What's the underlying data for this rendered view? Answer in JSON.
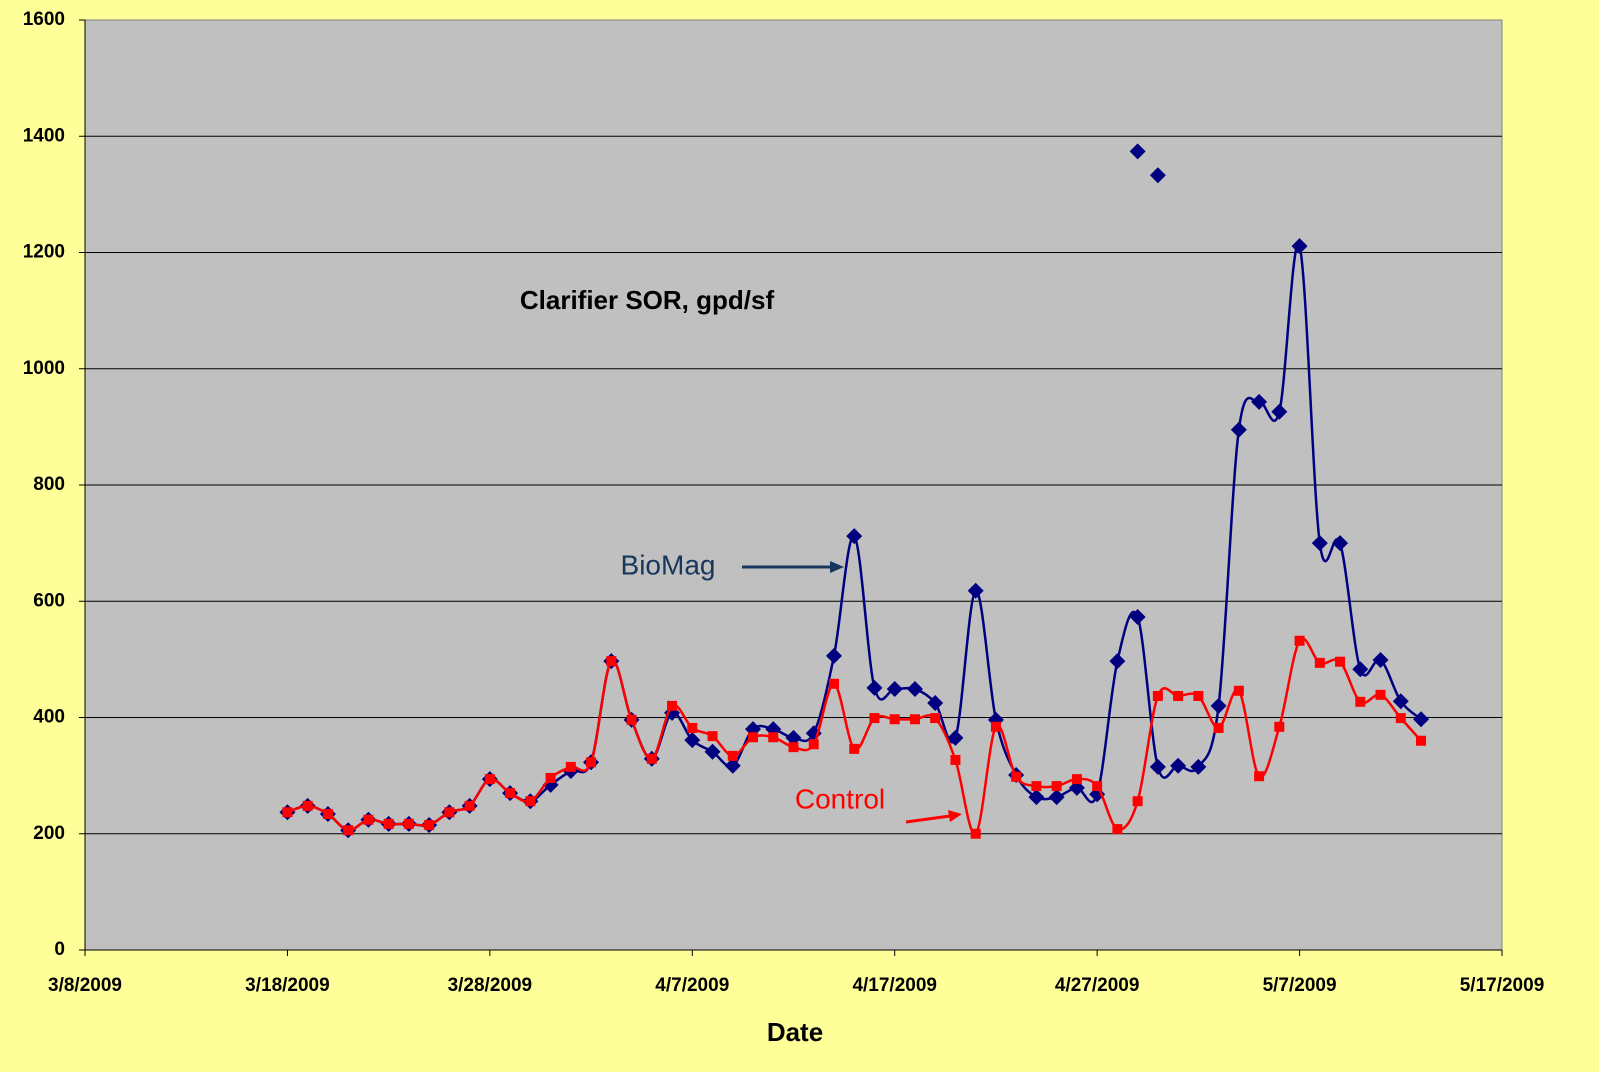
{
  "chart_data": {
    "type": "line",
    "title": "Clarifier SOR, gpd/sf",
    "x_label": "Date",
    "x": [
      "3/18/2009",
      "3/19/2009",
      "3/20/2009",
      "3/21/2009",
      "3/22/2009",
      "3/23/2009",
      "3/24/2009",
      "3/25/2009",
      "3/26/2009",
      "3/27/2009",
      "3/28/2009",
      "3/29/2009",
      "3/30/2009",
      "3/31/2009",
      "4/1/2009",
      "4/2/2009",
      "4/3/2009",
      "4/4/2009",
      "4/5/2009",
      "4/6/2009",
      "4/7/2009",
      "4/8/2009",
      "4/9/2009",
      "4/10/2009",
      "4/11/2009",
      "4/12/2009",
      "4/13/2009",
      "4/14/2009",
      "4/15/2009",
      "4/16/2009",
      "4/17/2009",
      "4/18/2009",
      "4/19/2009",
      "4/20/2009",
      "4/21/2009",
      "4/22/2009",
      "4/23/2009",
      "4/24/2009",
      "4/25/2009",
      "4/26/2009",
      "4/27/2009",
      "4/28/2009",
      "4/29/2009",
      "4/30/2009",
      "5/1/2009",
      "5/2/2009",
      "5/3/2009",
      "5/4/2009",
      "5/5/2009",
      "5/6/2009",
      "5/7/2009",
      "5/8/2009",
      "5/9/2009",
      "5/10/2009",
      "5/11/2009",
      "5/12/2009",
      "5/13/2009"
    ],
    "series": [
      {
        "name": "BioMag",
        "color": "#000080",
        "marker": "diamond",
        "line": true,
        "values": [
          237,
          248,
          234,
          206,
          224,
          217,
          217,
          215,
          237,
          248,
          294,
          270,
          256,
          284,
          308,
          323,
          497,
          396,
          329,
          408,
          361,
          341,
          317,
          380,
          380,
          365,
          373,
          506,
          712,
          451,
          449,
          449,
          425,
          365,
          618,
          396,
          301,
          263,
          263,
          279,
          268,
          497,
          573,
          315,
          317,
          315,
          420,
          895,
          943,
          926,
          1211,
          700,
          700,
          483,
          499,
          428,
          397
        ]
      },
      {
        "name": "Control",
        "color": "#FF0000",
        "marker": "square",
        "line": true,
        "values": [
          237,
          248,
          234,
          206,
          224,
          217,
          217,
          215,
          237,
          248,
          294,
          270,
          256,
          296,
          315,
          323,
          497,
          396,
          329,
          420,
          382,
          368,
          334,
          366,
          366,
          349,
          354,
          458,
          346,
          399,
          397,
          397,
          399,
          327,
          200,
          384,
          298,
          282,
          282,
          294,
          282,
          208,
          256,
          437,
          437,
          437,
          382,
          446,
          299,
          384,
          532,
          494,
          496,
          427,
          439,
          399,
          360
        ]
      },
      {
        "color": "#000080",
        "marker": "diamond",
        "line": false,
        "x": [
          "4/29/2009",
          "4/30/2009"
        ],
        "values": [
          1374,
          1333
        ]
      }
    ],
    "xlim": [
      "3/8/2009",
      "5/17/2009"
    ],
    "xticks": [
      "3/8/2009",
      "3/18/2009",
      "3/28/2009",
      "4/7/2009",
      "4/17/2009",
      "4/27/2009",
      "5/7/2009",
      "5/17/2009"
    ],
    "ylim": [
      0,
      1600
    ],
    "yticks": [
      0,
      200,
      400,
      600,
      800,
      1000,
      1200,
      1400,
      1600
    ],
    "grid": true,
    "smooth": true
  }
}
